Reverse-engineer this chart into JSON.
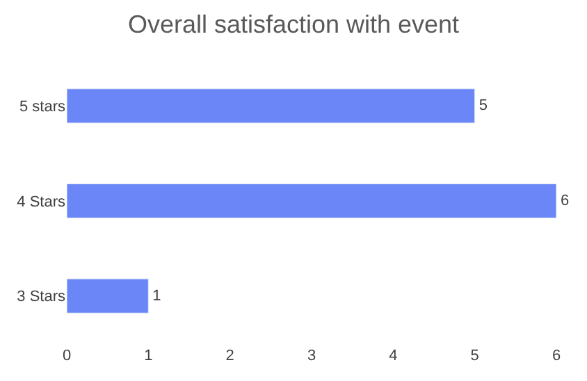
{
  "chart_data": {
    "type": "bar",
    "orientation": "horizontal",
    "title": "Overall satisfaction with event",
    "categories": [
      "5 stars",
      "4 Stars",
      "3 Stars"
    ],
    "values": [
      5,
      6,
      1
    ],
    "color": "#6b86f7",
    "xlim": [
      0,
      6
    ],
    "xticks": [
      0,
      1,
      2,
      3,
      4,
      5,
      6
    ],
    "grid": false,
    "data_labels": true,
    "legend": false
  }
}
